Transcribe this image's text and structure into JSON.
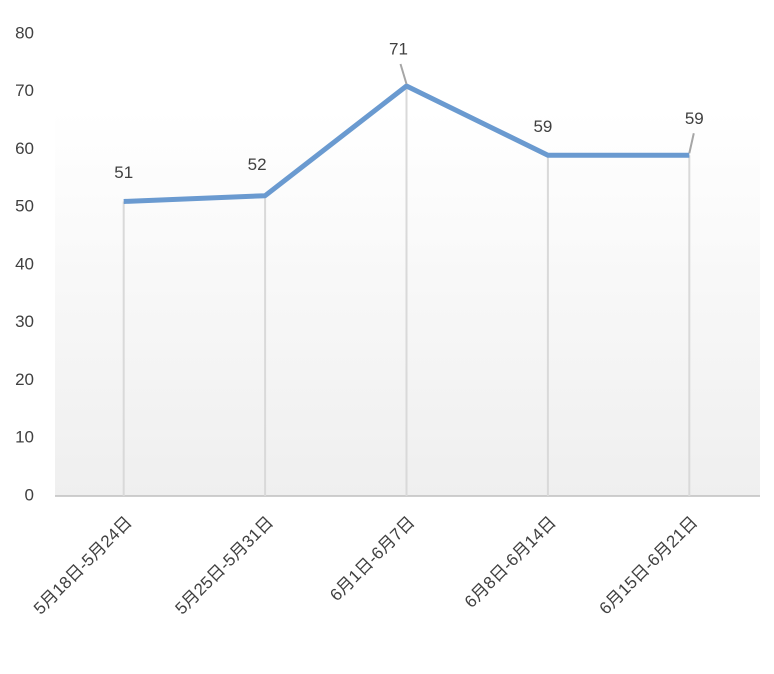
{
  "chart_data": {
    "type": "line",
    "categories": [
      "5月18日-5月24日",
      "5月25日-5月31日",
      "6月1日-6月7日",
      "6月8日-6月14日",
      "6月15日-6月21日"
    ],
    "values": [
      51,
      52,
      71,
      59,
      59
    ],
    "color": "#6a9ad0",
    "ylim": [
      0,
      80
    ],
    "yticks": [
      0,
      10,
      20,
      30,
      40,
      50,
      60,
      70,
      80
    ],
    "grid": false,
    "drop_lines": true
  }
}
